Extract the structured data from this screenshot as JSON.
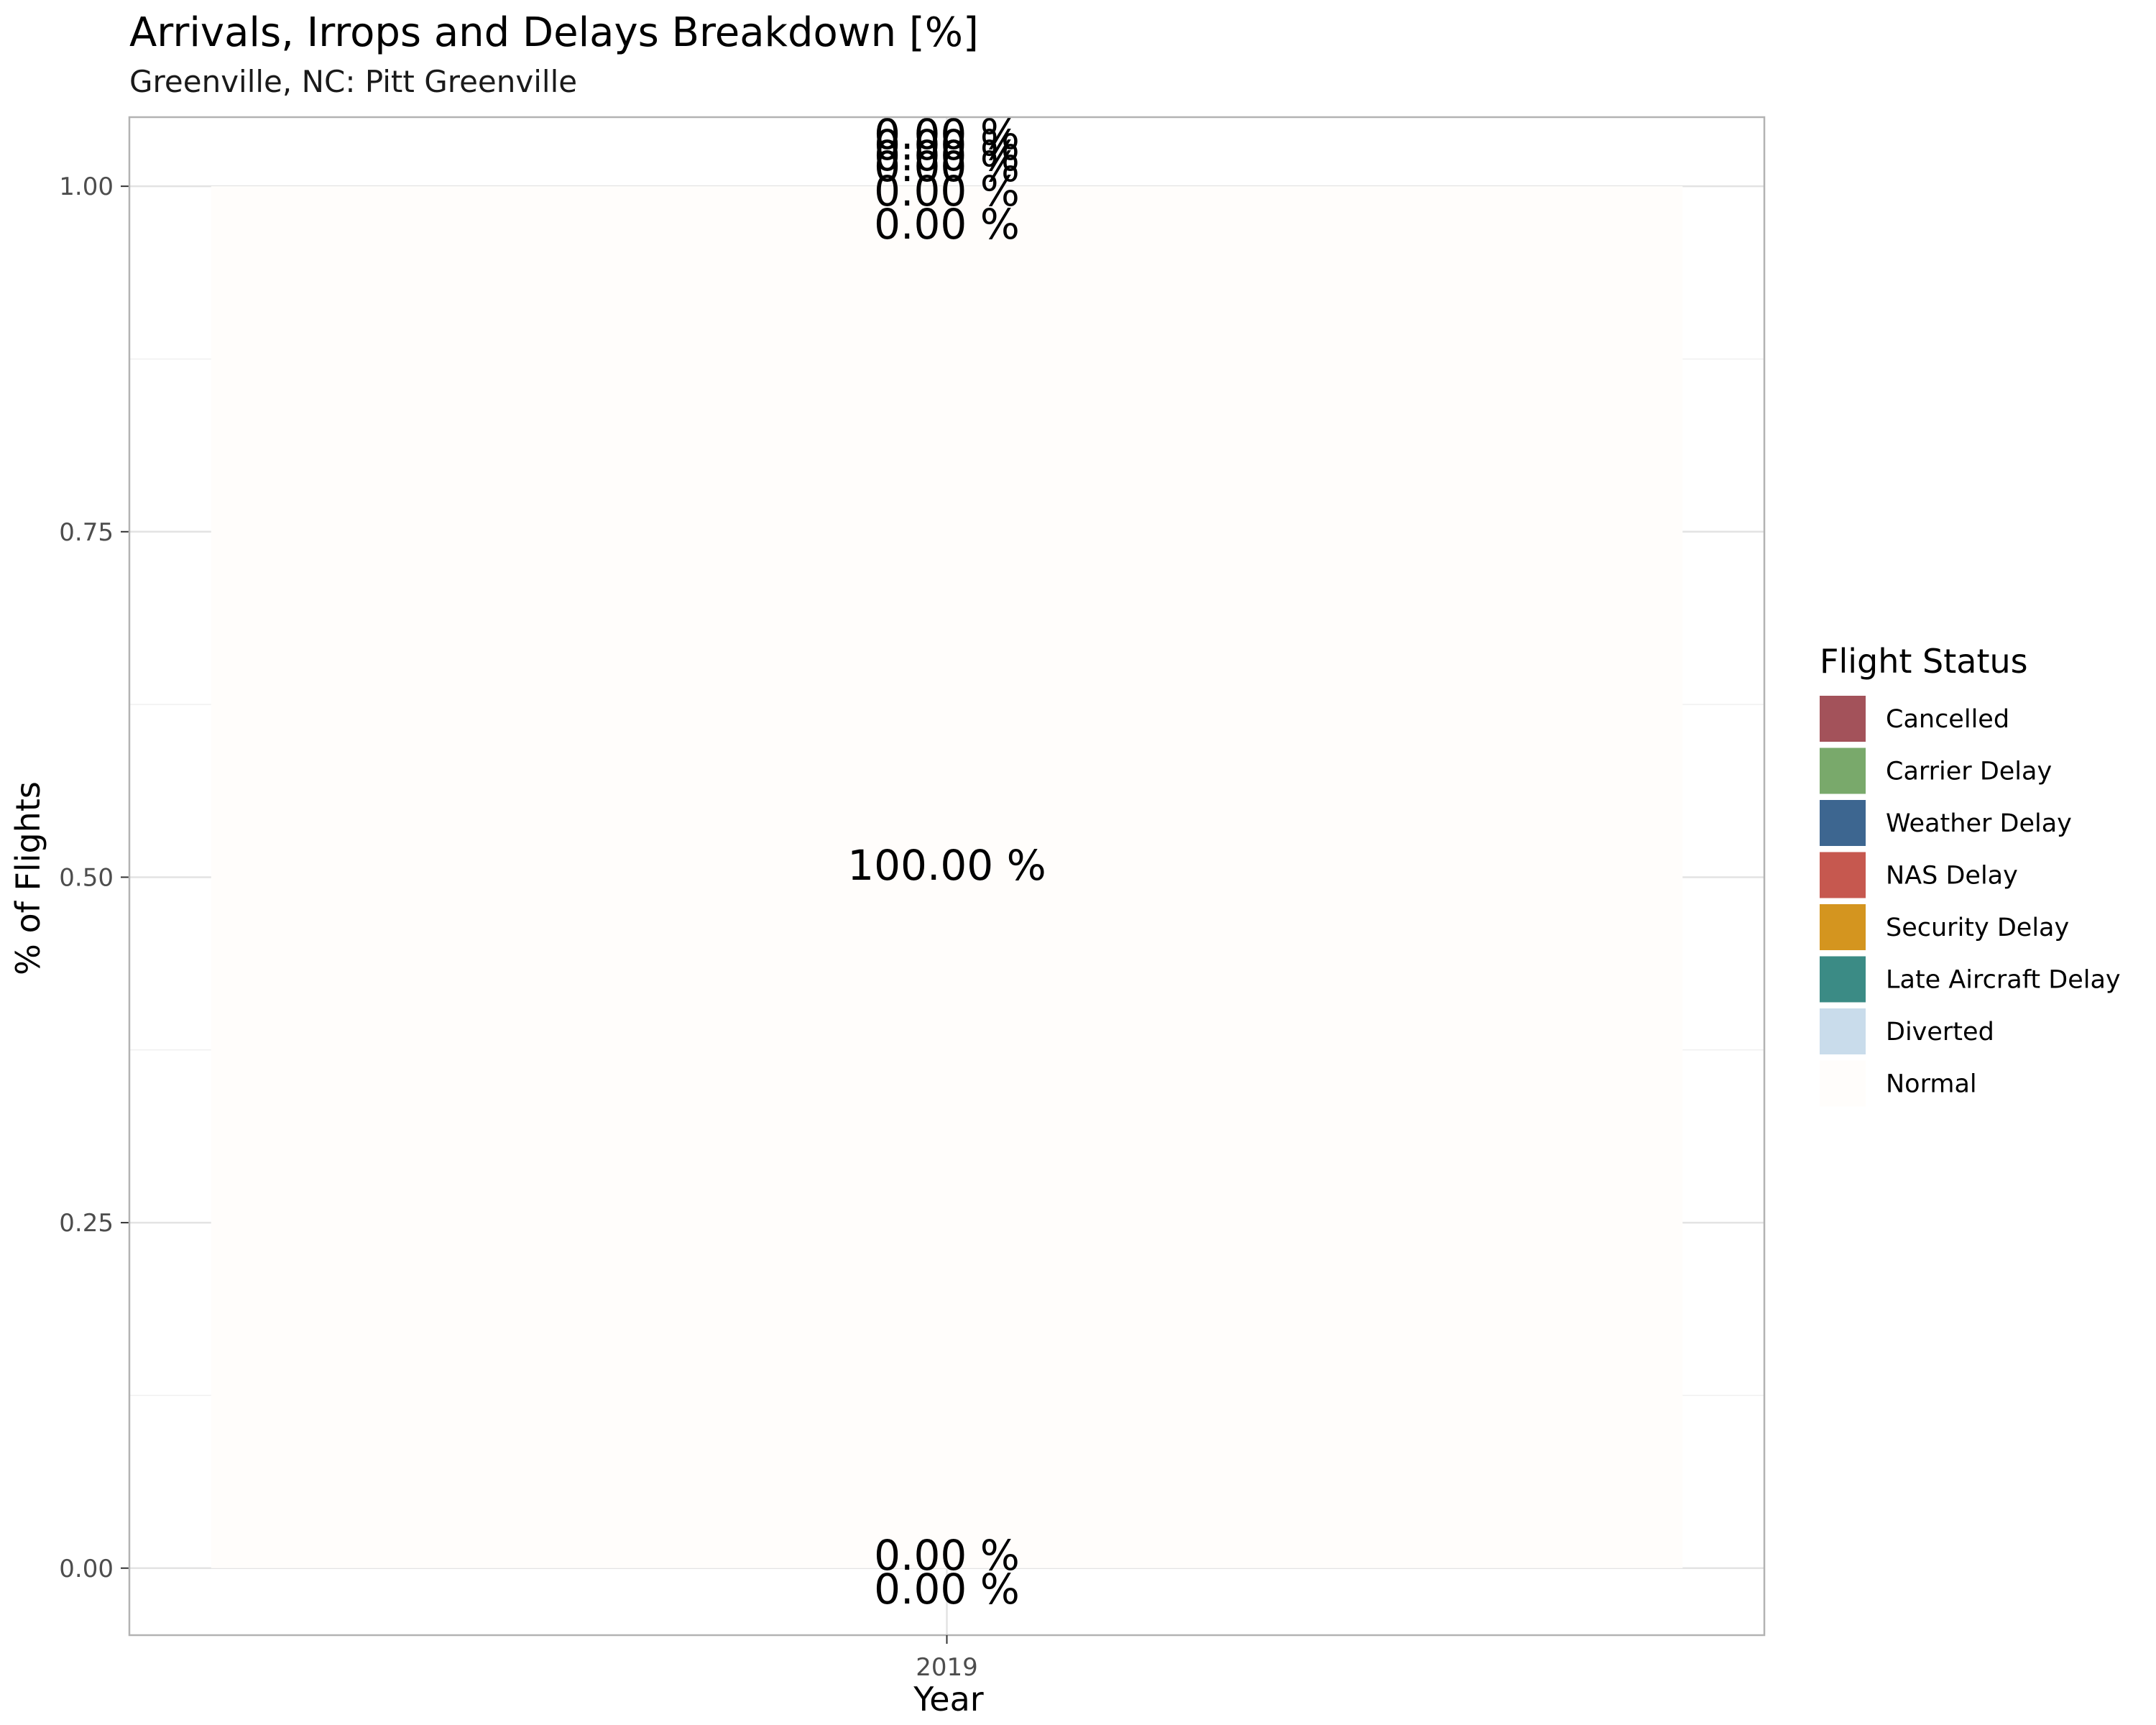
{
  "chart_data": {
    "type": "bar",
    "stacked": true,
    "title": "Arrivals, Irrops and Delays Breakdown [%]",
    "subtitle": "Greenville, NC: Pitt Greenville",
    "xlabel": "Year",
    "ylabel": "% of Flights",
    "categories": [
      "2019"
    ],
    "ylim": [
      -0.0485,
      1.05
    ],
    "yticks": [
      "0.00",
      "0.25",
      "0.50",
      "0.75",
      "1.00"
    ],
    "grid": true,
    "legend": {
      "title": "Flight Status",
      "position": "right"
    },
    "series": [
      {
        "name": "Cancelled",
        "color": "#a3525a",
        "values": [
          0.0
        ],
        "label": "0.00 %"
      },
      {
        "name": "Carrier Delay",
        "color": "#79a96b",
        "values": [
          0.0
        ],
        "label": "0.00 %"
      },
      {
        "name": "Weather Delay",
        "color": "#3d6690",
        "values": [
          0.0
        ],
        "label": "0.00 %"
      },
      {
        "name": "NAS Delay",
        "color": "#c6584f",
        "values": [
          0.0
        ],
        "label": "0.00 %"
      },
      {
        "name": "Security Delay",
        "color": "#d4951f",
        "values": [
          0.0
        ],
        "label": "0.00 %"
      },
      {
        "name": "Late Aircraft Delay",
        "color": "#3b8b85",
        "values": [
          0.0
        ],
        "label": "0.00 %"
      },
      {
        "name": "Diverted",
        "color": "#c9dceb",
        "values": [
          0.0
        ],
        "label": "0.00 %"
      },
      {
        "name": "Normal",
        "color": "#fffdfb",
        "values": [
          1.0
        ],
        "label": "100.00 %"
      }
    ]
  }
}
